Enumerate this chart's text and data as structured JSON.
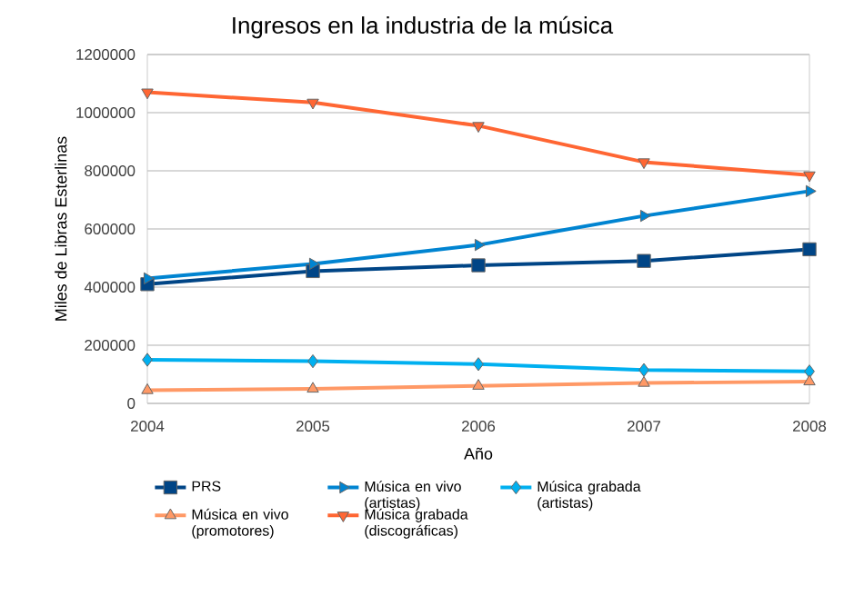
{
  "chart_data": {
    "type": "line",
    "title": "Ingresos en la industria de la música",
    "xlabel": "Año",
    "ylabel": "Miles de Libras Esterlinas",
    "x": [
      2004,
      2005,
      2006,
      2007,
      2008
    ],
    "xlim": [
      2004,
      2008
    ],
    "xticks": [
      2004,
      2005,
      2006,
      2007,
      2008
    ],
    "ylim": [
      0,
      1200000
    ],
    "yticks": [
      0,
      200000,
      400000,
      600000,
      800000,
      1000000,
      1200000
    ],
    "grid": "y",
    "legend": "bottom",
    "line_style": "solid",
    "series": [
      {
        "name": "PRS",
        "color": "#004586",
        "marker": "square",
        "values": [
          410000,
          455000,
          475000,
          490000,
          530000
        ]
      },
      {
        "name": "Música en vivo (artistas)",
        "color": "#0084d1",
        "marker": "triangle-right",
        "values": [
          430000,
          480000,
          545000,
          645000,
          730000
        ]
      },
      {
        "name": "Música grabada (artistas)",
        "color": "#00b0f0",
        "marker": "diamond",
        "values": [
          150000,
          145000,
          135000,
          115000,
          110000
        ]
      },
      {
        "name": "Música en vivo (promotores)",
        "color": "#ff9966",
        "marker": "triangle",
        "values": [
          45000,
          50000,
          60000,
          70000,
          75000
        ]
      },
      {
        "name": "Música grabada (discográficas)",
        "color": "#ff6633",
        "marker": "triangle-down",
        "values": [
          1070000,
          1035000,
          955000,
          830000,
          785000
        ]
      }
    ]
  }
}
